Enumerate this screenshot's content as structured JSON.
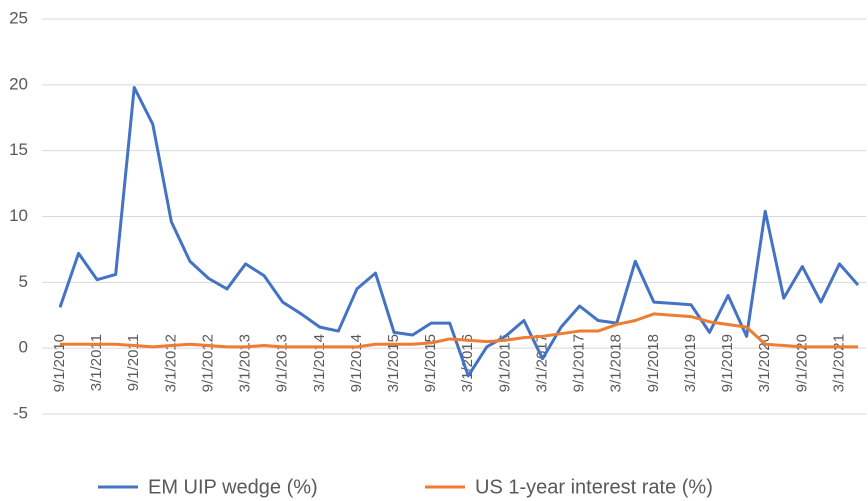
{
  "chart_data": {
    "type": "line",
    "categories": [
      "9/1/2010",
      null,
      "3/1/2011",
      null,
      "9/1/2011",
      null,
      "3/1/2012",
      null,
      "9/1/2012",
      null,
      "3/1/2013",
      null,
      "9/1/2013",
      null,
      "3/1/2014",
      null,
      "9/1/2014",
      null,
      "3/1/2015",
      null,
      "9/1/2015",
      null,
      "3/1/2016",
      null,
      "9/1/2016",
      null,
      "3/1/2017",
      null,
      "9/1/2017",
      null,
      "3/1/2018",
      null,
      "9/1/2018",
      null,
      "3/1/2019",
      null,
      "9/1/2019",
      null,
      "3/1/2020",
      null,
      "9/1/2020",
      null,
      "3/1/2021",
      null
    ],
    "series": [
      {
        "name": "EM UIP wedge (%)",
        "color": "#4472c4",
        "values": [
          3.1,
          7.2,
          5.2,
          5.6,
          19.8,
          17.0,
          9.6,
          6.6,
          5.3,
          4.5,
          6.4,
          5.5,
          3.5,
          2.6,
          1.6,
          1.3,
          4.5,
          5.7,
          1.2,
          1.0,
          1.9,
          1.9,
          -2.1,
          0.1,
          0.9,
          2.1,
          -0.8,
          1.6,
          3.2,
          2.1,
          1.9,
          6.6,
          3.5,
          3.4,
          3.3,
          1.2,
          4.0,
          0.9,
          10.4,
          3.8,
          6.2,
          3.5,
          6.4,
          4.8
        ]
      },
      {
        "name": "US 1-year interest rate (%)",
        "color": "#ed7d31",
        "values": [
          0.3,
          0.3,
          0.3,
          0.3,
          0.2,
          0.1,
          0.2,
          0.3,
          0.2,
          0.1,
          0.1,
          0.2,
          0.1,
          0.1,
          0.1,
          0.1,
          0.1,
          0.3,
          0.3,
          0.3,
          0.4,
          0.7,
          0.6,
          0.5,
          0.6,
          0.8,
          0.9,
          1.1,
          1.3,
          1.3,
          1.8,
          2.1,
          2.6,
          2.5,
          2.4,
          2.0,
          1.8,
          1.6,
          0.3,
          0.2,
          0.1,
          0.1,
          0.1,
          0.1
        ]
      }
    ],
    "ylim": [
      -5,
      25
    ],
    "yticks": [
      -5,
      0,
      5,
      10,
      15,
      20,
      25
    ],
    "grid": true
  }
}
